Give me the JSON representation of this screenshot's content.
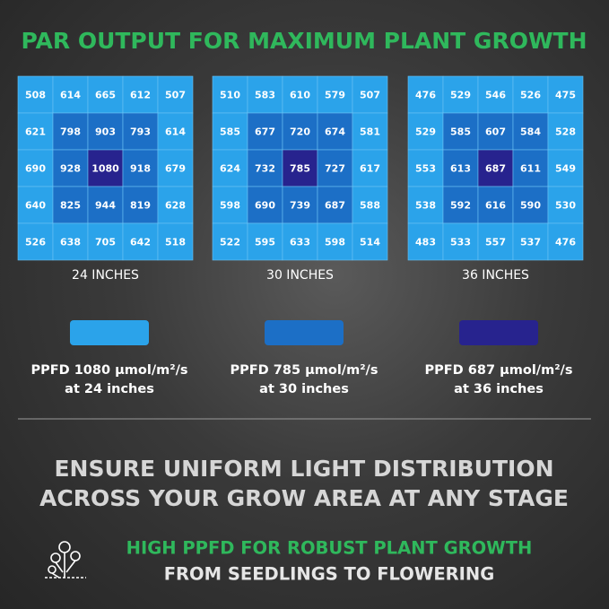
{
  "title": "PAR OUTPUT FOR MAXIMUM PLANT GROWTH",
  "grids": [
    {
      "label": "24 INCHES",
      "rows": [
        [
          508,
          614,
          665,
          612,
          507
        ],
        [
          621,
          798,
          903,
          793,
          614
        ],
        [
          690,
          928,
          1080,
          918,
          679
        ],
        [
          640,
          825,
          944,
          819,
          628
        ],
        [
          526,
          638,
          705,
          642,
          518
        ]
      ]
    },
    {
      "label": "30 INCHES",
      "rows": [
        [
          510,
          583,
          610,
          579,
          507
        ],
        [
          585,
          677,
          720,
          674,
          581
        ],
        [
          624,
          732,
          785,
          727,
          617
        ],
        [
          598,
          690,
          739,
          687,
          588
        ],
        [
          522,
          595,
          633,
          598,
          514
        ]
      ]
    },
    {
      "label": "36 INCHES",
      "rows": [
        [
          476,
          529,
          546,
          526,
          475
        ],
        [
          529,
          585,
          607,
          584,
          528
        ],
        [
          553,
          613,
          687,
          611,
          549
        ],
        [
          538,
          592,
          616,
          590,
          530
        ],
        [
          483,
          533,
          557,
          537,
          476
        ]
      ]
    }
  ],
  "legend": [
    {
      "line1": "PPFD 1080 μmol/m²/s",
      "line2": "at 24 inches"
    },
    {
      "line1": "PPFD 785 μmol/m²/s",
      "line2": "at 30 inches"
    },
    {
      "line1": "PPFD 687 μmol/m²/s",
      "line2": "at 36 inches"
    }
  ],
  "headline": [
    "ENSURE UNIFORM LIGHT DISTRIBUTION",
    "ACROSS YOUR GROW AREA AT ANY STAGE"
  ],
  "feature": {
    "highlight": "HIGH PPFD FOR ROBUST PLANT GROWTH",
    "text": "FROM SEEDLINGS TO FLOWERING"
  }
}
